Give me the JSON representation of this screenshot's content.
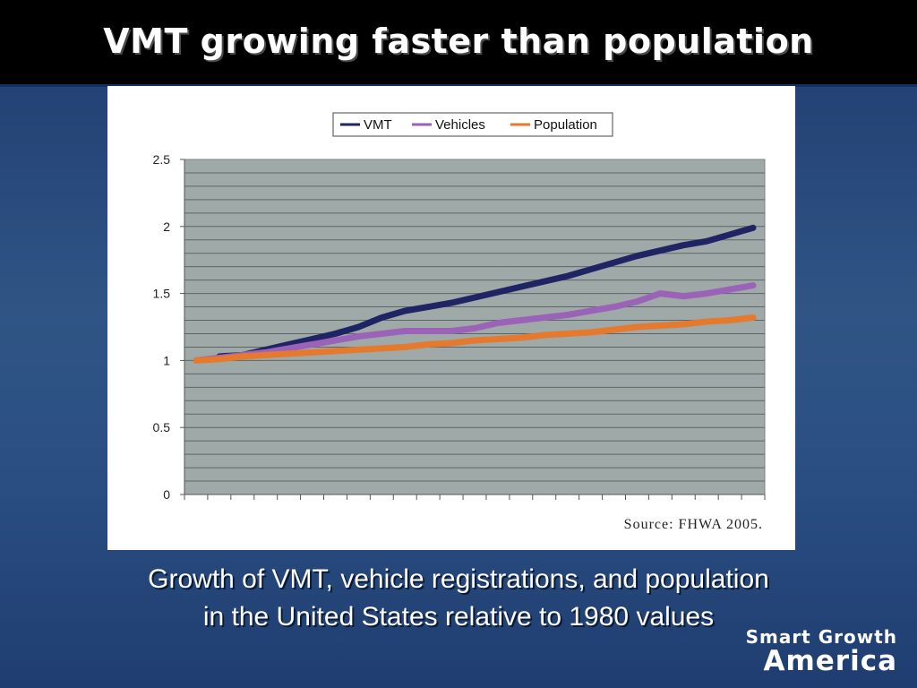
{
  "slide": {
    "title": "VMT growing faster than population",
    "caption_line1": "Growth of VMT, vehicle registrations, and population",
    "caption_line2": "in the United States relative to 1980 values",
    "logo_line1": "Smart Growth",
    "logo_line2": "America"
  },
  "colors": {
    "background": "#2a4e82",
    "title_bar": "#000000",
    "plot_area": "#9fa9a8",
    "vmt": "#1f2464",
    "vehicles": "#9b63b8",
    "population": "#e57a2f"
  },
  "chart_data": {
    "type": "line",
    "title": "",
    "xlabel": "",
    "ylabel": "",
    "ylim": [
      0,
      2.5
    ],
    "yticks": [
      0,
      0.5,
      1,
      1.5,
      2,
      2.5
    ],
    "ytick_labels": [
      "0",
      "0.5",
      "1",
      "1.5",
      "2",
      "2.5"
    ],
    "x_slots": 25,
    "grid": true,
    "legend": "top-center",
    "source": "Source: FHWA 2005.",
    "series": [
      {
        "name": "VMT",
        "color": "#1f2464",
        "x": [
          2,
          3,
          4,
          5,
          6,
          7,
          8,
          9,
          10,
          11,
          12,
          13,
          14,
          15,
          16,
          17,
          18,
          19,
          20,
          21,
          22,
          23,
          24,
          25
        ],
        "values": [
          1.03,
          1.04,
          1.08,
          1.12,
          1.16,
          1.2,
          1.25,
          1.32,
          1.37,
          1.4,
          1.43,
          1.47,
          1.51,
          1.55,
          1.59,
          1.63,
          1.68,
          1.73,
          1.78,
          1.82,
          1.86,
          1.89,
          1.94,
          1.99
        ]
      },
      {
        "name": "Vehicles",
        "color": "#9b63b8",
        "x": [
          1,
          2,
          3,
          4,
          5,
          6,
          7,
          8,
          9,
          10,
          11,
          12,
          13,
          14,
          15,
          16,
          17,
          18,
          19,
          20,
          21,
          22,
          23,
          24,
          25
        ],
        "values": [
          1.0,
          1.02,
          1.04,
          1.06,
          1.09,
          1.12,
          1.15,
          1.18,
          1.2,
          1.22,
          1.22,
          1.22,
          1.24,
          1.28,
          1.3,
          1.32,
          1.34,
          1.37,
          1.4,
          1.44,
          1.5,
          1.48,
          1.5,
          1.53,
          1.56
        ]
      },
      {
        "name": "Population",
        "color": "#e57a2f",
        "x": [
          1,
          2,
          3,
          4,
          5,
          6,
          7,
          8,
          9,
          10,
          11,
          12,
          13,
          14,
          15,
          16,
          17,
          18,
          19,
          20,
          21,
          22,
          23,
          24,
          25
        ],
        "values": [
          1.0,
          1.01,
          1.03,
          1.04,
          1.05,
          1.06,
          1.07,
          1.08,
          1.09,
          1.1,
          1.12,
          1.13,
          1.15,
          1.16,
          1.17,
          1.19,
          1.2,
          1.21,
          1.23,
          1.25,
          1.26,
          1.27,
          1.29,
          1.3,
          1.32
        ]
      }
    ]
  }
}
